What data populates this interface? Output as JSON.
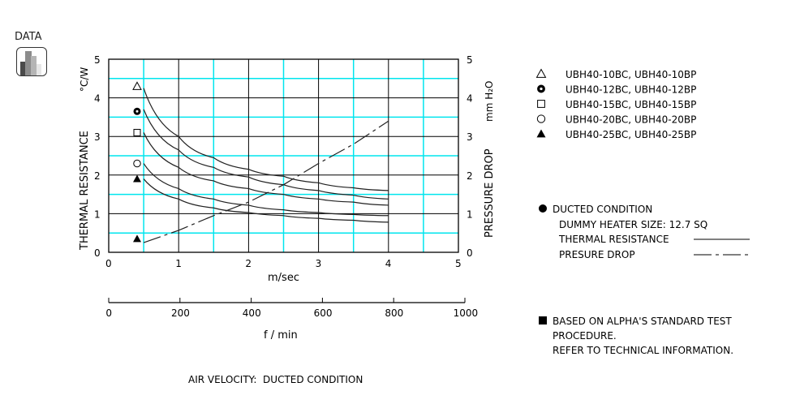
{
  "toolbar": {
    "data_label": "DATA"
  },
  "chart_data": {
    "type": "line",
    "title": "AIR VELOCITY:  DUCTED CONDITION",
    "xlabel": "m/sec",
    "xlabel2": "f / min",
    "ylabel": "THERMAL  RESISTANCE",
    "ylabel_unit": "°C/W",
    "ylabel_right": "PRESSURE  DROP",
    "ylabel_right_unit": "mm H₂O",
    "xlim": [
      0,
      5
    ],
    "ylim": [
      0,
      5
    ],
    "ylim_right": [
      0,
      5
    ],
    "x2lim": [
      0,
      1000
    ],
    "xticks": [
      "0",
      "1",
      "2",
      "3",
      "4",
      "5"
    ],
    "yticks": [
      "0",
      "1",
      "2",
      "3",
      "4",
      "5"
    ],
    "yticks_right": [
      "0",
      "1",
      "2",
      "3",
      "4",
      "5"
    ],
    "x2ticks": [
      "0",
      "200",
      "400",
      "600",
      "800",
      "1000"
    ],
    "grid": true,
    "x": [
      0.5,
      1,
      1.5,
      2,
      2.5,
      3,
      3.5,
      4
    ],
    "series": [
      {
        "name": "UBH40-10BC,   UBH40-10BP",
        "marker": "triangle-open",
        "marker_value": 4.3,
        "values": [
          4.25,
          3.0,
          2.45,
          2.15,
          1.97,
          1.8,
          1.67,
          1.6
        ]
      },
      {
        "name": "UBH40-12BC,   UBH40-12BP",
        "marker": "bullseye",
        "marker_value": 3.65,
        "values": [
          3.7,
          2.65,
          2.2,
          1.95,
          1.75,
          1.6,
          1.48,
          1.38
        ]
      },
      {
        "name": "UBH40-15BC,   UBH40-15BP",
        "marker": "square-open",
        "marker_value": 3.1,
        "values": [
          3.1,
          2.2,
          1.85,
          1.65,
          1.5,
          1.38,
          1.3,
          1.22
        ]
      },
      {
        "name": "UBH40-20BC,   UBH40-20BP",
        "marker": "circle-open",
        "marker_value": 2.3,
        "values": [
          2.3,
          1.65,
          1.38,
          1.22,
          1.1,
          1.03,
          0.98,
          0.95
        ]
      },
      {
        "name": "UBH40-25BC,   UBH40-25BP",
        "marker": "triangle-filled",
        "marker_value": 1.9,
        "values": [
          1.9,
          1.38,
          1.15,
          1.03,
          0.95,
          0.88,
          0.83,
          0.78
        ]
      }
    ],
    "pressure_drop": {
      "name": "PRESURE DROP",
      "marker": "triangle-filled",
      "marker_value": 0.35,
      "values": [
        0.25,
        0.57,
        0.95,
        1.3,
        1.75,
        2.3,
        2.8,
        3.4
      ]
    },
    "notes": {
      "condition": "DUCTED CONDITION",
      "heater": "DUMMY HEATER SIZE:  12.7 SQ",
      "thermal_resistance": "THERMAL RESISTANCE",
      "pressure_drop": "PRESURE DROP",
      "footnote": [
        "BASED ON ALPHA'S STANDARD TEST",
        "PROCEDURE.",
        "REFER TO TECHNICAL INFORMATION."
      ]
    },
    "colors": {
      "major_grid": "#000000",
      "minor_grid": "#00e5ee",
      "line": "#222222"
    }
  }
}
